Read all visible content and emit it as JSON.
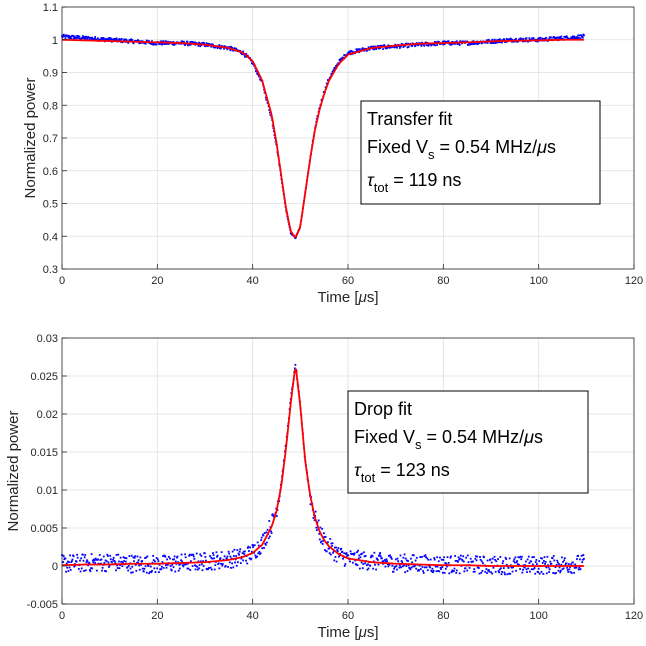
{
  "chart_data": [
    {
      "type": "scatter",
      "title": "",
      "xlabel": "Time",
      "xlabel_unit_prefix": "μ",
      "xlabel_unit": "s",
      "ylabel": "Normalized power",
      "xlim": [
        0,
        120
      ],
      "ylim": [
        0.3,
        1.1
      ],
      "xticks": [
        "0",
        "20",
        "40",
        "60",
        "80",
        "100",
        "120"
      ],
      "yticks": [
        "0.3",
        "0.4",
        "0.5",
        "0.6",
        "0.7",
        "0.8",
        "0.9",
        "1",
        "1.1"
      ],
      "grid": true,
      "shape": "dip",
      "x_range": [
        0,
        109.5
      ],
      "center": 49,
      "peak_value": 0.395,
      "baseline": 1.0,
      "tau_ns": 119,
      "series": [
        {
          "color": "#0000ff",
          "style": "dotted-markers",
          "noise": 0.006,
          "x": [
            0,
            5,
            10,
            15,
            20,
            25,
            30,
            35,
            38,
            40,
            42,
            44,
            45,
            46,
            47,
            48,
            49,
            50,
            51,
            52,
            53,
            54,
            55,
            56,
            58,
            60,
            65,
            70,
            75,
            80,
            85,
            90,
            95,
            100,
            105,
            109.5
          ],
          "y": [
            1.01,
            1.005,
            1.0,
            0.995,
            0.99,
            0.99,
            0.985,
            0.975,
            0.96,
            0.93,
            0.87,
            0.76,
            0.68,
            0.58,
            0.48,
            0.41,
            0.395,
            0.43,
            0.53,
            0.63,
            0.72,
            0.79,
            0.84,
            0.88,
            0.93,
            0.96,
            0.975,
            0.98,
            0.985,
            0.99,
            0.99,
            0.995,
            1.0,
            1.0,
            1.005,
            1.01
          ]
        },
        {
          "color": "#ff0000",
          "style": "line",
          "x": [
            0,
            5,
            10,
            15,
            20,
            25,
            30,
            35,
            38,
            40,
            42,
            44,
            45,
            46,
            47,
            48,
            49,
            50,
            51,
            52,
            53,
            54,
            55,
            56,
            58,
            60,
            65,
            70,
            75,
            80,
            85,
            90,
            95,
            100,
            105,
            109.5
          ],
          "y": [
            1.0,
            0.998,
            0.996,
            0.994,
            0.992,
            0.99,
            0.985,
            0.975,
            0.96,
            0.935,
            0.875,
            0.77,
            0.685,
            0.585,
            0.485,
            0.415,
            0.395,
            0.43,
            0.53,
            0.63,
            0.72,
            0.785,
            0.835,
            0.875,
            0.925,
            0.955,
            0.975,
            0.982,
            0.988,
            0.99,
            0.992,
            0.995,
            0.997,
            0.998,
            1.0,
            1.0
          ]
        }
      ],
      "annotation": {
        "line1": "Transfer fit",
        "line2_prefix": "Fixed V",
        "line2_sub": "s",
        "line2_suffix": " = 0.54 MHz/",
        "line2_greek": "μ",
        "line2_unit": "s",
        "line3_greek": "τ",
        "line3_sub": "tot",
        "line3_suffix": " = 119 ns"
      }
    },
    {
      "type": "scatter",
      "title": "",
      "xlabel": "Time",
      "xlabel_unit_prefix": "μ",
      "xlabel_unit": "s",
      "ylabel": "Normalized power",
      "xlim": [
        0,
        120
      ],
      "ylim": [
        -0.005,
        0.03
      ],
      "xticks": [
        "0",
        "20",
        "40",
        "60",
        "80",
        "100",
        "120"
      ],
      "yticks": [
        "-0.005",
        "0",
        "0.005",
        "0.01",
        "0.015",
        "0.02",
        "0.025",
        "0.03"
      ],
      "grid": true,
      "shape": "peak",
      "x_range": [
        0,
        109.5
      ],
      "center": 49,
      "peak_value": 0.0265,
      "baseline": 0.0,
      "tau_ns": 123,
      "series": [
        {
          "color": "#0000ff",
          "style": "dotted-markers",
          "noise": 0.0012,
          "x": [
            0,
            5,
            10,
            15,
            20,
            25,
            30,
            35,
            38,
            40,
            42,
            44,
            45,
            46,
            47,
            48,
            49,
            50,
            51,
            52,
            53,
            54,
            55,
            56,
            58,
            60,
            65,
            70,
            75,
            80,
            85,
            90,
            95,
            100,
            105,
            109.5
          ],
          "y": [
            0.0003,
            0.0004,
            0.0005,
            0.0003,
            0.0002,
            0.0004,
            0.0006,
            0.0009,
            0.0012,
            0.0018,
            0.003,
            0.0055,
            0.0075,
            0.011,
            0.016,
            0.022,
            0.0265,
            0.021,
            0.014,
            0.0095,
            0.0065,
            0.0045,
            0.0033,
            0.0025,
            0.0015,
            0.001,
            0.0006,
            0.0004,
            0.0003,
            0.0002,
            0.0002,
            0.0001,
            0.0001,
            0.0001,
            0.0002,
            0.0003
          ]
        },
        {
          "color": "#ff0000",
          "style": "line",
          "x": [
            0,
            5,
            10,
            15,
            20,
            25,
            30,
            35,
            38,
            40,
            42,
            44,
            45,
            46,
            47,
            48,
            49,
            50,
            51,
            52,
            53,
            54,
            55,
            56,
            58,
            60,
            65,
            70,
            75,
            80,
            85,
            90,
            95,
            100,
            105,
            109.5
          ],
          "y": [
            0.0001,
            0.0002,
            0.0002,
            0.0003,
            0.0003,
            0.0004,
            0.0005,
            0.0008,
            0.0012,
            0.0017,
            0.0028,
            0.0052,
            0.0072,
            0.0105,
            0.0155,
            0.0215,
            0.0265,
            0.021,
            0.014,
            0.0095,
            0.0065,
            0.0046,
            0.0034,
            0.0026,
            0.0016,
            0.001,
            0.0005,
            0.0003,
            0.0002,
            0.0001,
            0.0001,
            0.0,
            0.0,
            0.0,
            0.0,
            0.0
          ]
        }
      ],
      "annotation": {
        "line1": "Drop fit",
        "line2_prefix": "Fixed V",
        "line2_sub": "s",
        "line2_suffix": " = 0.54 MHz/",
        "line2_greek": "μ",
        "line2_unit": "s",
        "line3_greek": "τ",
        "line3_sub": "tot",
        "line3_suffix": " = 123 ns"
      }
    }
  ]
}
